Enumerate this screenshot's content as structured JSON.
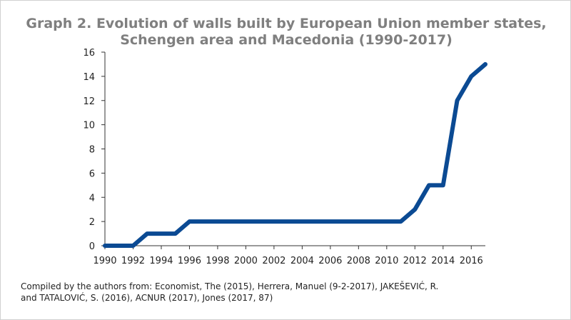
{
  "chart_data": {
    "type": "line",
    "title": [
      "Graph 2. Evolution of walls built by European Union member states,",
      "Schengen area and Macedonia (1990-2017)"
    ],
    "source": [
      "Compiled by the authors from: Economist, The (2015), Herrera, Manuel (9-2-2017), JAKEŠEVIĆ, R.",
      "and TATALOVIĆ, S. (2016),  ACNUR (2017), Jones (2017, 87)"
    ],
    "x": [
      1990,
      1991,
      1992,
      1993,
      1994,
      1995,
      1996,
      1997,
      1998,
      1999,
      2000,
      2001,
      2002,
      2003,
      2004,
      2005,
      2006,
      2007,
      2008,
      2009,
      2010,
      2011,
      2012,
      2013,
      2014,
      2015,
      2016,
      2017
    ],
    "series": [
      {
        "color": "#0b4a93",
        "values": [
          0,
          0,
          0,
          1,
          1,
          1,
          2,
          2,
          2,
          2,
          2,
          2,
          2,
          2,
          2,
          2,
          2,
          2,
          2,
          2,
          2,
          2,
          3,
          5,
          5,
          12,
          14,
          15
        ]
      }
    ],
    "xlim": [
      1990,
      2017
    ],
    "xticks": [
      1990,
      1992,
      1994,
      1996,
      1998,
      2000,
      2002,
      2004,
      2006,
      2008,
      2010,
      2012,
      2014,
      2016
    ],
    "ylim": [
      0,
      16
    ],
    "yticks": [
      0,
      2,
      4,
      6,
      8,
      10,
      12,
      14,
      16
    ]
  }
}
